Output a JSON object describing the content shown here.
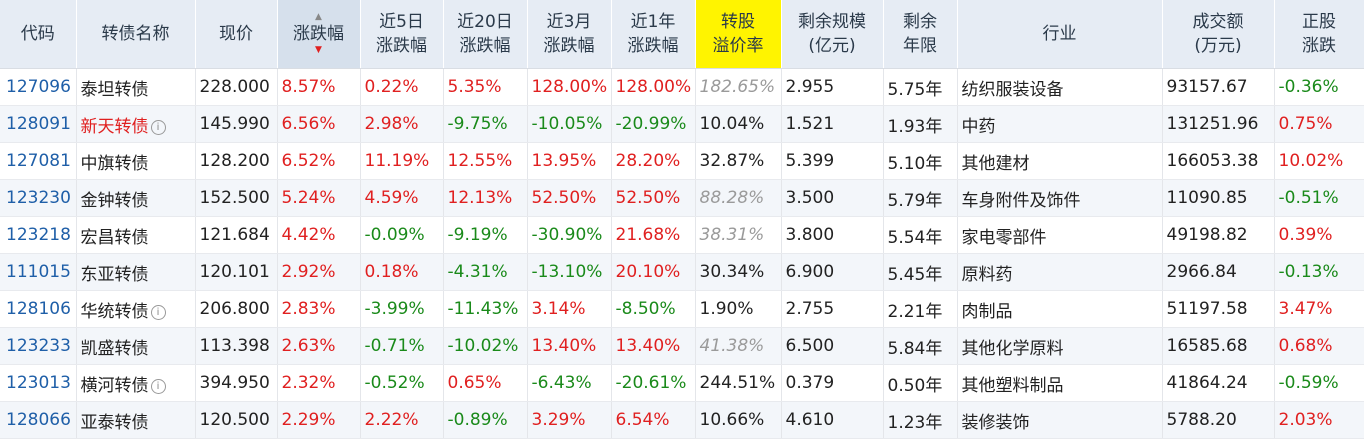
{
  "headers": [
    {
      "label": "代码"
    },
    {
      "label": "转债名称"
    },
    {
      "label": "现价"
    },
    {
      "label": "涨跌幅"
    },
    {
      "label": "近5日\n涨跌幅"
    },
    {
      "label": "近20日\n涨跌幅"
    },
    {
      "label": "近3月\n涨跌幅"
    },
    {
      "label": "近1年\n涨跌幅"
    },
    {
      "label": "转股\n溢价率"
    },
    {
      "label": "剩余规模\n(亿元)"
    },
    {
      "label": "剩余\n年限"
    },
    {
      "label": "行业"
    },
    {
      "label": "成交额\n(万元)"
    },
    {
      "label": "正股\n涨跌"
    }
  ],
  "rows": [
    {
      "code": "127096",
      "name": "泰坦转债",
      "name_red": false,
      "info": false,
      "price": "228.000",
      "chg": "8.57%",
      "chg5": "0.22%",
      "chg20": "5.35%",
      "chg3m": "128.00%",
      "chg1y": "128.00%",
      "premium": "182.65%",
      "premium_muted": true,
      "scale": "2.955",
      "years": "5.75年",
      "industry": "纺织服装设备",
      "turnover": "93157.67",
      "stock_chg": "-0.36%"
    },
    {
      "code": "128091",
      "name": "新天转债",
      "name_red": true,
      "info": true,
      "price": "145.990",
      "chg": "6.56%",
      "chg5": "2.98%",
      "chg20": "-9.75%",
      "chg3m": "-10.05%",
      "chg1y": "-20.99%",
      "premium": "10.04%",
      "premium_muted": false,
      "scale": "1.521",
      "years": "1.93年",
      "industry": "中药",
      "turnover": "131251.96",
      "stock_chg": "0.75%"
    },
    {
      "code": "127081",
      "name": "中旗转债",
      "name_red": false,
      "info": false,
      "price": "128.200",
      "chg": "6.52%",
      "chg5": "11.19%",
      "chg20": "12.55%",
      "chg3m": "13.95%",
      "chg1y": "28.20%",
      "premium": "32.87%",
      "premium_muted": false,
      "scale": "5.399",
      "years": "5.10年",
      "industry": "其他建材",
      "turnover": "166053.38",
      "stock_chg": "10.02%"
    },
    {
      "code": "123230",
      "name": "金钟转债",
      "name_red": false,
      "info": false,
      "price": "152.500",
      "chg": "5.24%",
      "chg5": "4.59%",
      "chg20": "12.13%",
      "chg3m": "52.50%",
      "chg1y": "52.50%",
      "premium": "88.28%",
      "premium_muted": true,
      "scale": "3.500",
      "years": "5.79年",
      "industry": "车身附件及饰件",
      "turnover": "11090.85",
      "stock_chg": "-0.51%"
    },
    {
      "code": "123218",
      "name": "宏昌转债",
      "name_red": false,
      "info": false,
      "price": "121.684",
      "chg": "4.42%",
      "chg5": "-0.09%",
      "chg20": "-9.19%",
      "chg3m": "-30.90%",
      "chg1y": "21.68%",
      "premium": "38.31%",
      "premium_muted": true,
      "scale": "3.800",
      "years": "5.54年",
      "industry": "家电零部件",
      "turnover": "49198.82",
      "stock_chg": "0.39%"
    },
    {
      "code": "111015",
      "name": "东亚转债",
      "name_red": false,
      "info": false,
      "price": "120.101",
      "chg": "2.92%",
      "chg5": "0.18%",
      "chg20": "-4.31%",
      "chg3m": "-13.10%",
      "chg1y": "20.10%",
      "premium": "30.34%",
      "premium_muted": false,
      "scale": "6.900",
      "years": "5.45年",
      "industry": "原料药",
      "turnover": "2966.84",
      "stock_chg": "-0.13%"
    },
    {
      "code": "128106",
      "name": "华统转债",
      "name_red": false,
      "info": true,
      "price": "206.800",
      "chg": "2.83%",
      "chg5": "-3.99%",
      "chg20": "-11.43%",
      "chg3m": "3.14%",
      "chg1y": "-8.50%",
      "premium": "1.90%",
      "premium_muted": false,
      "scale": "2.755",
      "years": "2.21年",
      "industry": "肉制品",
      "turnover": "51197.58",
      "stock_chg": "3.47%"
    },
    {
      "code": "123233",
      "name": "凯盛转债",
      "name_red": false,
      "info": false,
      "price": "113.398",
      "chg": "2.63%",
      "chg5": "-0.71%",
      "chg20": "-10.02%",
      "chg3m": "13.40%",
      "chg1y": "13.40%",
      "premium": "41.38%",
      "premium_muted": true,
      "scale": "6.500",
      "years": "5.84年",
      "industry": "其他化学原料",
      "turnover": "16585.68",
      "stock_chg": "0.68%"
    },
    {
      "code": "123013",
      "name": "横河转债",
      "name_red": false,
      "info": true,
      "price": "394.950",
      "chg": "2.32%",
      "chg5": "-0.52%",
      "chg20": "0.65%",
      "chg3m": "-6.43%",
      "chg1y": "-20.61%",
      "premium": "244.51%",
      "premium_muted": false,
      "scale": "0.379",
      "years": "0.50年",
      "industry": "其他塑料制品",
      "turnover": "41864.24",
      "stock_chg": "-0.59%"
    },
    {
      "code": "128066",
      "name": "亚泰转债",
      "name_red": false,
      "info": false,
      "price": "120.500",
      "chg": "2.29%",
      "chg5": "2.22%",
      "chg20": "-0.89%",
      "chg3m": "3.29%",
      "chg1y": "6.54%",
      "premium": "10.66%",
      "premium_muted": false,
      "scale": "4.610",
      "years": "1.23年",
      "industry": "装修装饰",
      "turnover": "5788.20",
      "stock_chg": "2.03%"
    }
  ],
  "colors": {
    "up": "#e02020",
    "down": "#1a8a1a",
    "code": "#1f5fa8",
    "highlight": "#fff400",
    "header_bg": "#e6ecf4"
  },
  "sort": {
    "column": "涨跌幅",
    "direction": "desc"
  },
  "icons": {
    "info": "info-circle-icon",
    "sort": "sort-arrows-icon"
  }
}
